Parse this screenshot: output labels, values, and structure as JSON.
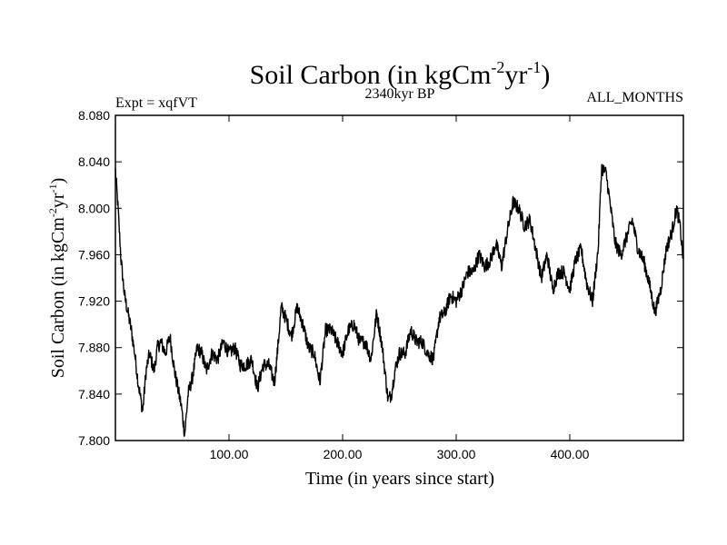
{
  "chart_data": {
    "type": "line",
    "title": {
      "main": "Soil Carbon (in kgCm",
      "sup1": "-2",
      "mid": "yr",
      "sup2": "-1",
      "end": ")"
    },
    "subtitle_left": "Expt = xqfVT",
    "subtitle_center": "2340kyr BP",
    "subtitle_right": "ALL_MONTHS",
    "xlabel": "Time (in years since start)",
    "ylabel": {
      "main": "Soil Carbon (in kgCm",
      "sup1": "-2",
      "mid": "yr",
      "sup2": "-1",
      "end": ")"
    },
    "xlim": [
      0,
      500
    ],
    "ylim": [
      7.8,
      8.08
    ],
    "x_ticks": [
      {
        "value": 100,
        "label": "100.00"
      },
      {
        "value": 200,
        "label": "200.00"
      },
      {
        "value": 300,
        "label": "300.00"
      },
      {
        "value": 400,
        "label": "400.00"
      }
    ],
    "y_ticks": [
      {
        "value": 7.8,
        "label": "7.800"
      },
      {
        "value": 7.84,
        "label": "7.840"
      },
      {
        "value": 7.88,
        "label": "7.880"
      },
      {
        "value": 7.92,
        "label": "7.920"
      },
      {
        "value": 7.96,
        "label": "7.960"
      },
      {
        "value": 8.0,
        "label": "8.000"
      },
      {
        "value": 8.04,
        "label": "8.040"
      },
      {
        "value": 8.08,
        "label": "8.080"
      }
    ],
    "grid": false,
    "series": [
      {
        "name": "Soil Carbon",
        "color": "#000000",
        "noise_amplitude": 0.006,
        "x": [
          0,
          2,
          5,
          8,
          11,
          14,
          17,
          20,
          24,
          27,
          30,
          34,
          37,
          40,
          44,
          48,
          52,
          55,
          58,
          61,
          64,
          68,
          72,
          76,
          80,
          85,
          90,
          95,
          100,
          105,
          110,
          115,
          120,
          125,
          130,
          135,
          140,
          143,
          146,
          150,
          155,
          160,
          165,
          170,
          175,
          180,
          185,
          190,
          195,
          200,
          205,
          210,
          215,
          220,
          225,
          230,
          235,
          240,
          243,
          246,
          250,
          255,
          260,
          265,
          270,
          275,
          280,
          285,
          290,
          295,
          300,
          305,
          310,
          315,
          320,
          325,
          330,
          335,
          340,
          345,
          350,
          355,
          360,
          365,
          370,
          375,
          380,
          385,
          390,
          395,
          400,
          405,
          410,
          415,
          420,
          425,
          428,
          432,
          436,
          440,
          445,
          450,
          455,
          460,
          465,
          470,
          475,
          480,
          485,
          490,
          494,
          497,
          500
        ],
        "values": [
          8.033,
          8.005,
          7.955,
          7.925,
          7.91,
          7.895,
          7.875,
          7.85,
          7.825,
          7.86,
          7.875,
          7.86,
          7.88,
          7.885,
          7.875,
          7.89,
          7.86,
          7.845,
          7.83,
          7.805,
          7.84,
          7.855,
          7.88,
          7.875,
          7.86,
          7.875,
          7.87,
          7.885,
          7.875,
          7.88,
          7.865,
          7.865,
          7.87,
          7.845,
          7.865,
          7.865,
          7.85,
          7.88,
          7.915,
          7.905,
          7.89,
          7.915,
          7.9,
          7.88,
          7.875,
          7.85,
          7.895,
          7.895,
          7.885,
          7.875,
          7.895,
          7.9,
          7.885,
          7.885,
          7.87,
          7.91,
          7.88,
          7.835,
          7.84,
          7.86,
          7.875,
          7.875,
          7.895,
          7.885,
          7.885,
          7.875,
          7.87,
          7.905,
          7.91,
          7.925,
          7.92,
          7.93,
          7.945,
          7.945,
          7.96,
          7.95,
          7.955,
          7.97,
          7.95,
          7.98,
          8.005,
          8.0,
          7.985,
          7.99,
          7.965,
          7.94,
          7.96,
          7.93,
          7.945,
          7.945,
          7.93,
          7.955,
          7.965,
          7.935,
          7.92,
          7.965,
          8.035,
          8.03,
          8.0,
          7.97,
          7.96,
          7.975,
          7.99,
          7.965,
          7.955,
          7.935,
          7.91,
          7.93,
          7.965,
          7.98,
          8.0,
          7.985,
          7.955
        ]
      }
    ]
  }
}
